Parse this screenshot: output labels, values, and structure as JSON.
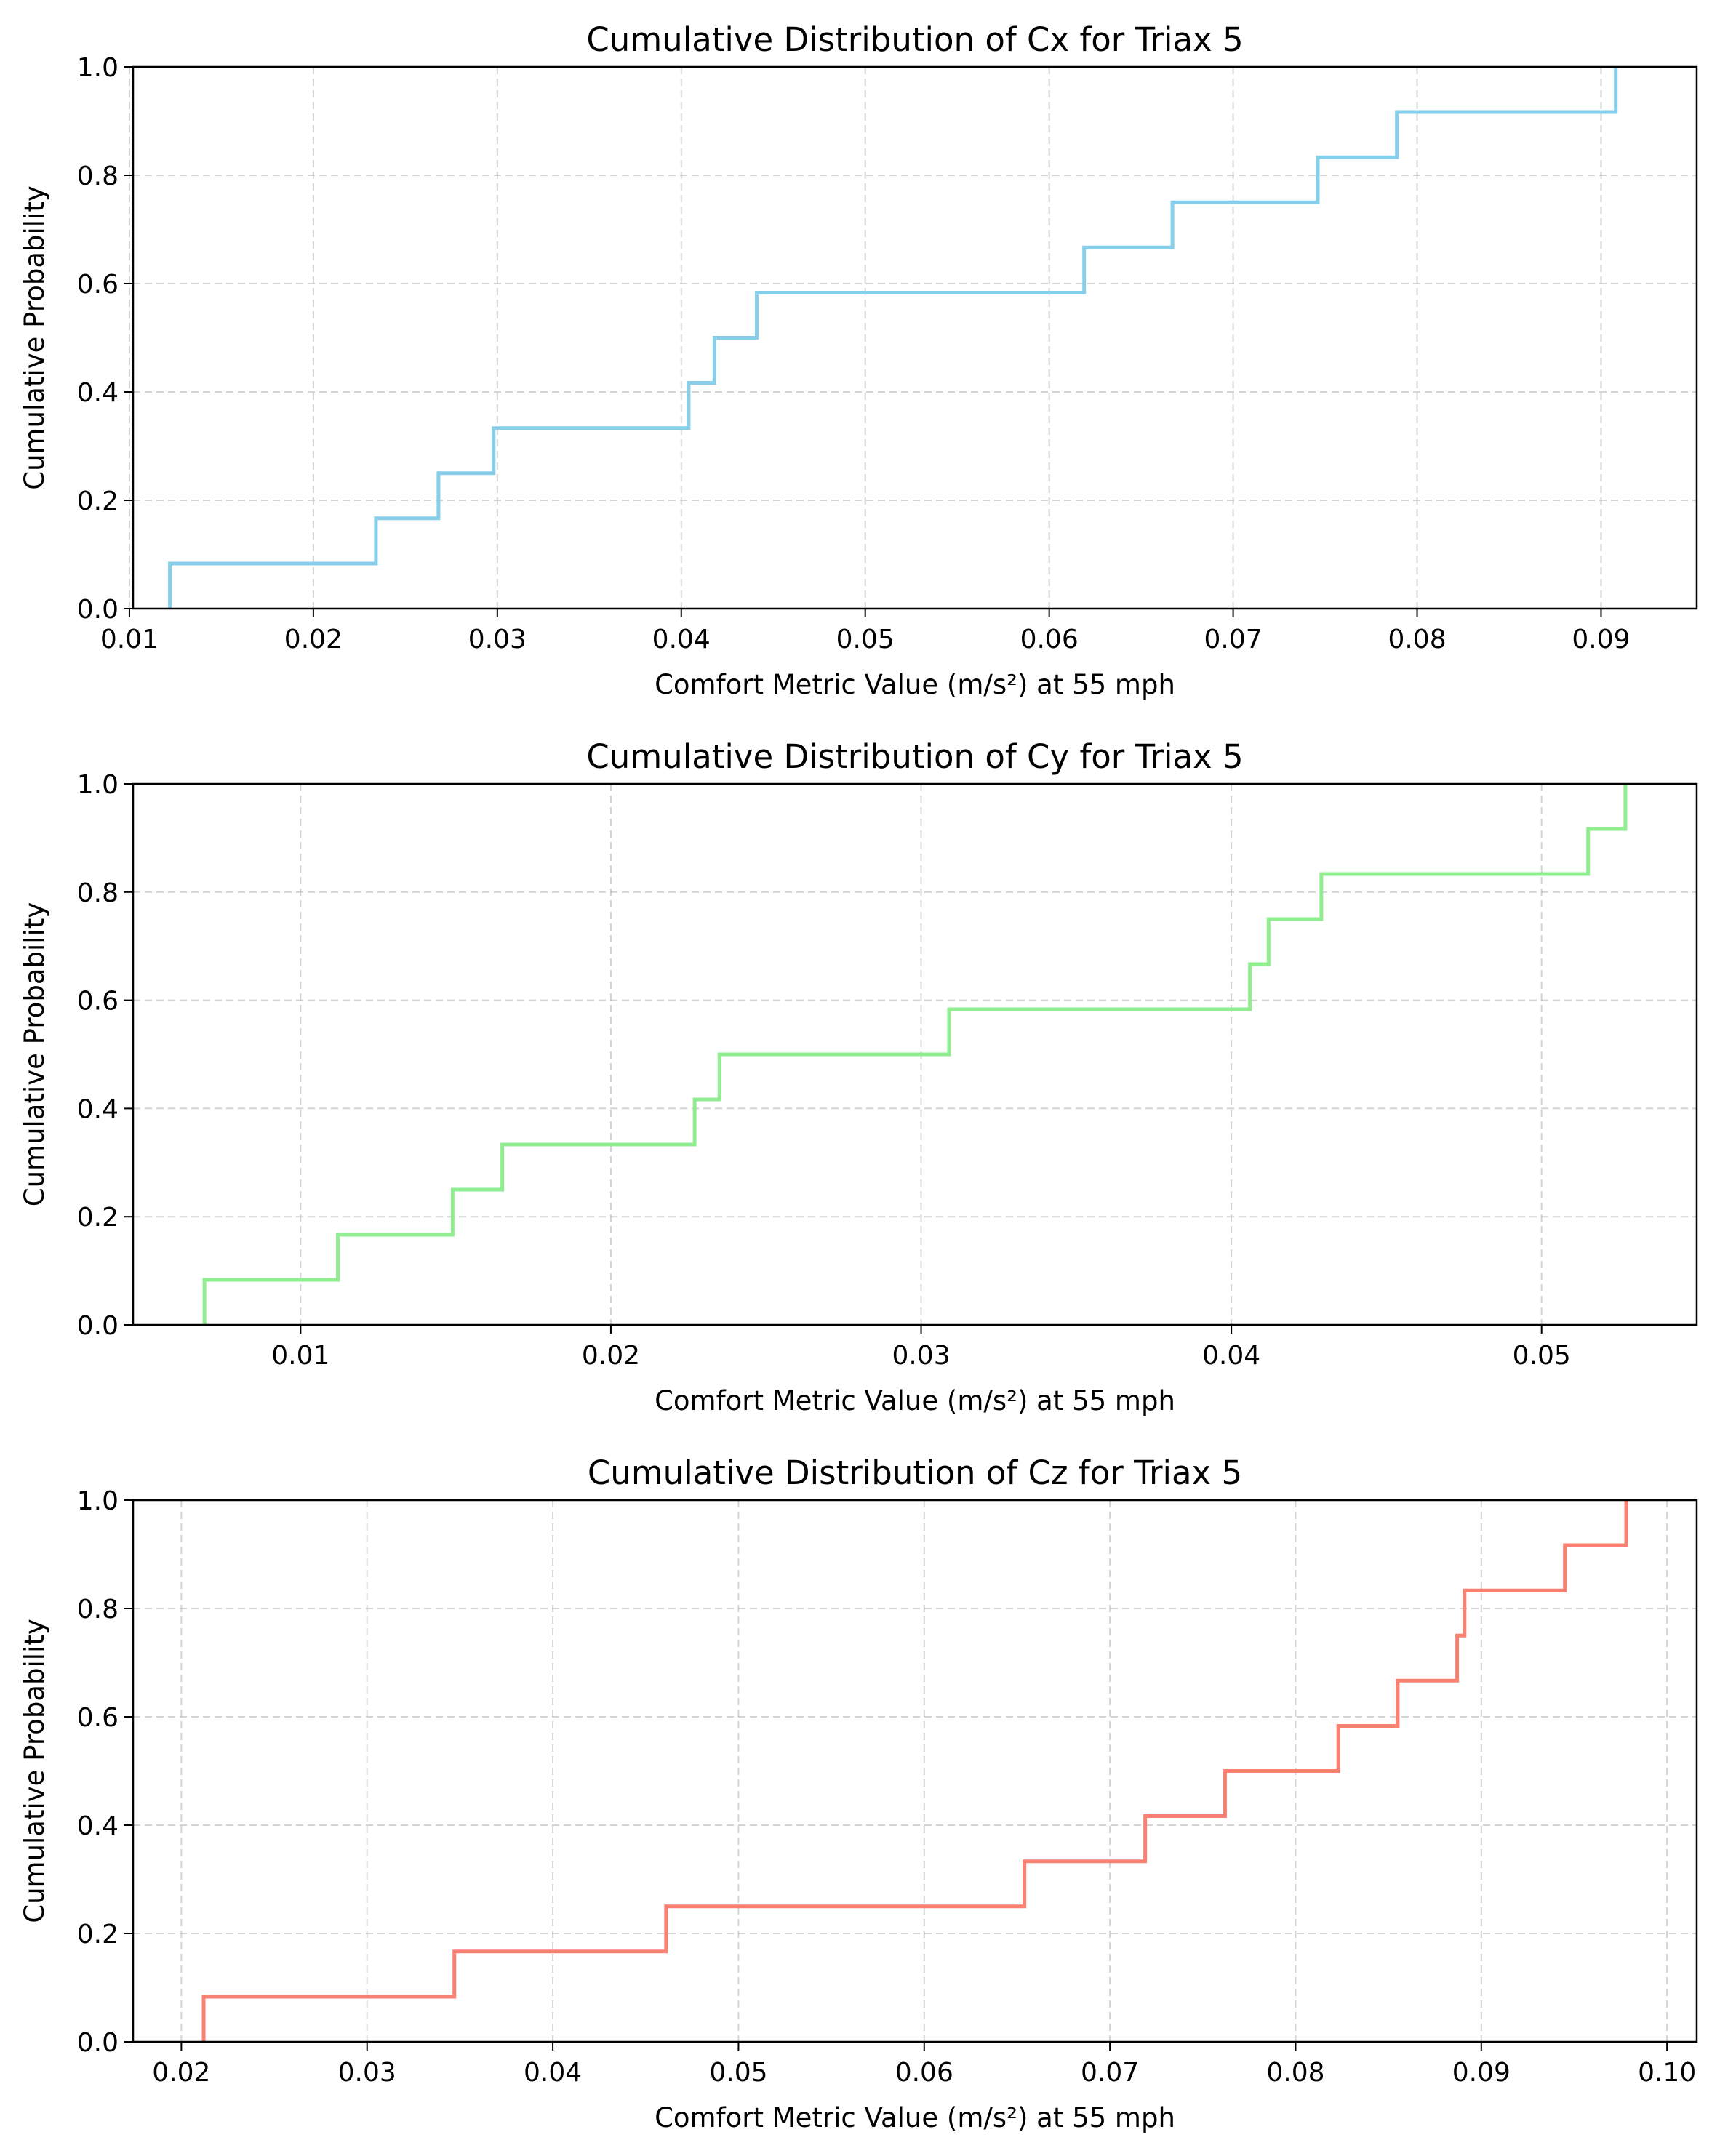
{
  "chart_data": [
    {
      "type": "line",
      "title": "Cumulative Distribution of Cx for Triax 5",
      "xlabel": "Comfort Metric Value (m/s²) at 55 mph",
      "ylabel": "Cumulative Probability",
      "xlim": [
        0.0102,
        0.0952
      ],
      "ylim": [
        0,
        1
      ],
      "xticks": [
        "0.01",
        "0.02",
        "0.03",
        "0.04",
        "0.05",
        "0.06",
        "0.07",
        "0.08",
        "0.09"
      ],
      "yticks": [
        "0.0",
        "0.2",
        "0.4",
        "0.6",
        "0.8",
        "1.0"
      ],
      "grid": true,
      "step": true,
      "color": "#87CEEB",
      "series": [
        {
          "x": [
            0.0122,
            0.0234,
            0.0268,
            0.0298,
            0.0298,
            0.0404,
            0.0418,
            0.0441,
            0.0619,
            0.0667,
            0.0746,
            0.0789,
            0.0908
          ],
          "y": [
            0.0833,
            0.1667,
            0.25,
            0.3333,
            0.3333,
            0.4167,
            0.5,
            0.5833,
            0.6667,
            0.75,
            0.8333,
            0.9167,
            1.0
          ]
        }
      ]
    },
    {
      "type": "line",
      "title": "Cumulative Distribution of Cy for Triax 5",
      "xlabel": "Comfort Metric Value (m/s²) at 55 mph",
      "ylabel": "Cumulative Probability",
      "xlim": [
        0.0046,
        0.055
      ],
      "ylim": [
        0,
        1
      ],
      "xticks": [
        "0.01",
        "0.02",
        "0.03",
        "0.04",
        "0.05"
      ],
      "yticks": [
        "0.0",
        "0.2",
        "0.4",
        "0.6",
        "0.8",
        "1.0"
      ],
      "grid": true,
      "step": true,
      "color": "#90EE90",
      "series": [
        {
          "x": [
            0.0069,
            0.0112,
            0.0149,
            0.0165,
            0.0227,
            0.0235,
            0.0309,
            0.0406,
            0.0412,
            0.0429,
            0.0515,
            0.0527
          ],
          "y": [
            0.0833,
            0.1667,
            0.25,
            0.3333,
            0.4167,
            0.5,
            0.5833,
            0.6667,
            0.75,
            0.8333,
            0.9167,
            1.0
          ]
        }
      ]
    },
    {
      "type": "line",
      "title": "Cumulative Distribution of Cz for Triax 5",
      "xlabel": "Comfort Metric Value (m/s²) at 55 mph",
      "ylabel": "Cumulative Probability",
      "xlim": [
        0.0174,
        0.1016
      ],
      "ylim": [
        0,
        1
      ],
      "xticks": [
        "0.02",
        "0.03",
        "0.04",
        "0.05",
        "0.06",
        "0.07",
        "0.08",
        "0.09",
        "0.10"
      ],
      "yticks": [
        "0.0",
        "0.2",
        "0.4",
        "0.6",
        "0.8",
        "1.0"
      ],
      "grid": true,
      "step": true,
      "color": "#FA8072",
      "series": [
        {
          "x": [
            0.0212,
            0.0347,
            0.0461,
            0.0654,
            0.0719,
            0.0762,
            0.0823,
            0.0855,
            0.0887,
            0.0891,
            0.0945,
            0.0978
          ],
          "y": [
            0.0833,
            0.1667,
            0.25,
            0.3333,
            0.4167,
            0.5,
            0.5833,
            0.6667,
            0.75,
            0.8333,
            0.9167,
            1.0
          ]
        }
      ]
    }
  ]
}
